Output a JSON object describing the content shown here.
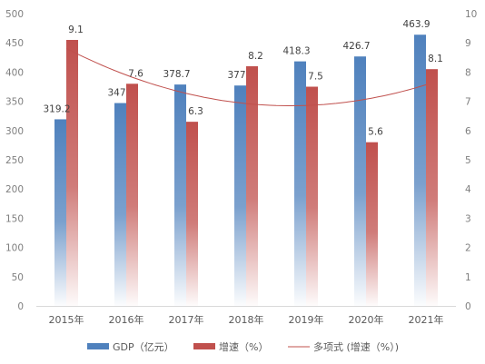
{
  "chart_data": {
    "type": "bar",
    "categories": [
      "2015年",
      "2016年",
      "2017年",
      "2018年",
      "2019年",
      "2020年",
      "2021年"
    ],
    "series": [
      {
        "name": "GDP（亿元）",
        "axis": "left",
        "values": [
          319.2,
          347.0,
          378.7,
          377.0,
          418.3,
          426.7,
          463.9
        ],
        "labels": [
          "319.2",
          "347",
          "378.7",
          "377",
          "418.3",
          "426.7",
          "463.9"
        ],
        "color": "#4f81bd"
      },
      {
        "name": "增速（%）",
        "axis": "right",
        "values": [
          9.1,
          7.6,
          6.3,
          8.2,
          7.5,
          5.6,
          8.1
        ],
        "labels": [
          "9.1",
          "7.6",
          "6.3",
          "8.2",
          "7.5",
          "5.6",
          "8.1"
        ],
        "color": "#c0504d"
      }
    ],
    "trendline": {
      "name": "多项式 (增速（%）)",
      "type": "polynomial",
      "of_series": "增速（%）",
      "color": "#c0504d"
    },
    "ylim_left": [
      0,
      500
    ],
    "yticks_left": [
      0,
      50,
      100,
      150,
      200,
      250,
      300,
      350,
      400,
      450,
      500
    ],
    "ylim_right": [
      0,
      10
    ],
    "yticks_right": [
      0,
      1,
      2,
      3,
      4,
      5,
      6,
      7,
      8,
      9,
      10
    ],
    "grid": false,
    "legend": "bottom"
  }
}
